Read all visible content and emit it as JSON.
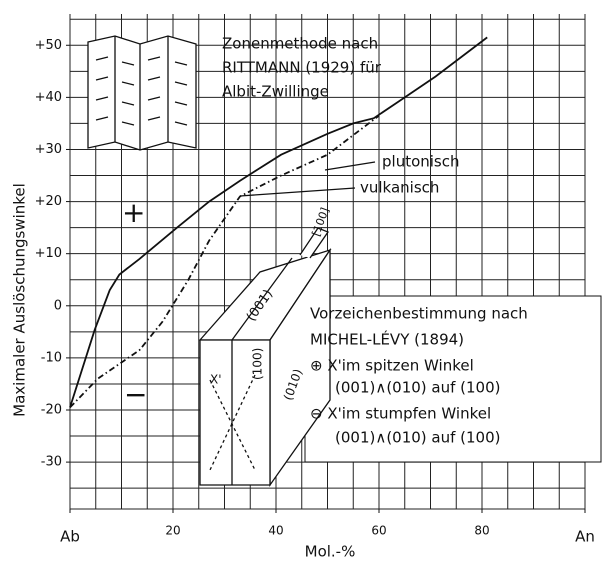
{
  "chart_data": {
    "type": "line",
    "x_label": "Mol.-%",
    "y_label": "Maximaler Auslöschungswinkel",
    "xlim": [
      0,
      100
    ],
    "ylim": [
      -39,
      56
    ],
    "xticks": [
      {
        "value": 0,
        "label": "Ab"
      },
      20,
      40,
      60,
      80,
      {
        "value": 100,
        "label": "An"
      }
    ],
    "yticks": [
      {
        "value": 50,
        "label": "+50"
      },
      {
        "value": 40,
        "label": "+40"
      },
      {
        "value": 30,
        "label": "+30"
      },
      {
        "value": 20,
        "label": "+20"
      },
      {
        "value": 10,
        "label": "+10"
      },
      0,
      -10,
      -20,
      -30
    ],
    "grid": true,
    "xgrid": [
      5,
      10,
      15,
      20,
      25,
      30,
      35,
      40,
      45,
      50,
      55,
      60,
      65,
      70,
      75,
      80,
      85,
      90,
      95,
      100
    ],
    "ygrid": [
      -35,
      -30,
      -25,
      -20,
      -15,
      -10,
      -5,
      0,
      5,
      10,
      15,
      20,
      25,
      30,
      35,
      40,
      45,
      50,
      55
    ],
    "series": [
      {
        "name": "plutonisch",
        "color": "#111111",
        "dash": "solid",
        "x": [
          0,
          4.8,
          7.7,
          9.6,
          13.5,
          20.8,
          27,
          33,
          41,
          50,
          55,
          59,
          63.5,
          71,
          81
        ],
        "values": [
          -19.5,
          -4.6,
          3,
          6,
          9,
          15,
          20,
          24,
          29,
          33,
          35,
          36,
          39,
          44,
          51.5
        ]
      },
      {
        "name": "vulkanisch",
        "color": "#111111",
        "dash": "dashdot",
        "x": [
          0,
          5.4,
          13.5,
          18,
          23,
          27,
          33,
          41,
          50,
          60
        ],
        "values": [
          -19.5,
          -14,
          -8.5,
          -3,
          5,
          12.5,
          21,
          25,
          29,
          36.5
        ]
      }
    ],
    "annotations": [
      "Zonenmethode nach",
      "RITTMANN (1929) für",
      "Albit-Zwillinge",
      "+",
      "−",
      "Vorzeichenbestimmung nach",
      "MICHEL-LÉVY (1894)",
      "⊕ X'im spitzen Winkel",
      "(001)∧(010) auf (100)",
      "⊖ X'im stumpfen Winkel",
      "(001)∧(010) auf (100)",
      "[100]",
      "(001)",
      "(100)",
      "(010)",
      "X'"
    ]
  }
}
